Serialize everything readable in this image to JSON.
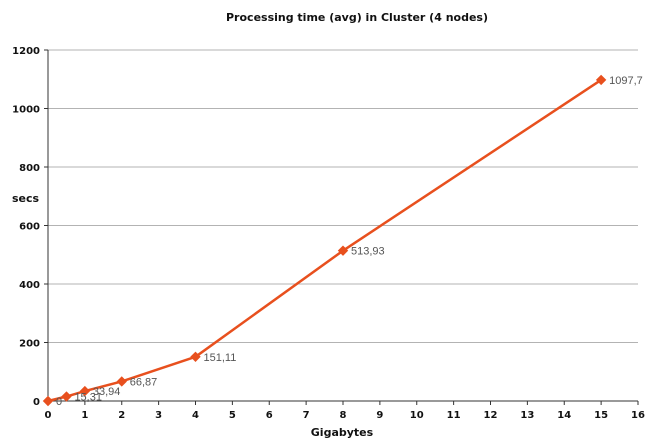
{
  "chart_data": {
    "type": "line",
    "title": "Processing time (avg) in Cluster (4 nodes)",
    "xlabel": "Gigabytes",
    "ylabel": "secs",
    "xlim": [
      0,
      16
    ],
    "ylim": [
      0,
      1200
    ],
    "x_ticks": [
      0,
      1,
      2,
      3,
      4,
      5,
      6,
      7,
      8,
      9,
      10,
      11,
      12,
      13,
      14,
      15,
      16
    ],
    "y_ticks": [
      0,
      200,
      400,
      600,
      800,
      1000,
      1200
    ],
    "grid": "horizontal",
    "legend": "none",
    "series": [
      {
        "color": "#e8501e",
        "marker": "diamond",
        "x": [
          0,
          0.5,
          1,
          2,
          4,
          8,
          15
        ],
        "y": [
          0,
          15.31,
          33.94,
          66.87,
          151.11,
          513.93,
          1097.7
        ],
        "labels": [
          "0",
          "15,31",
          "33,94",
          "66,87",
          "151,11",
          "513,93",
          "1097,7"
        ]
      }
    ]
  }
}
